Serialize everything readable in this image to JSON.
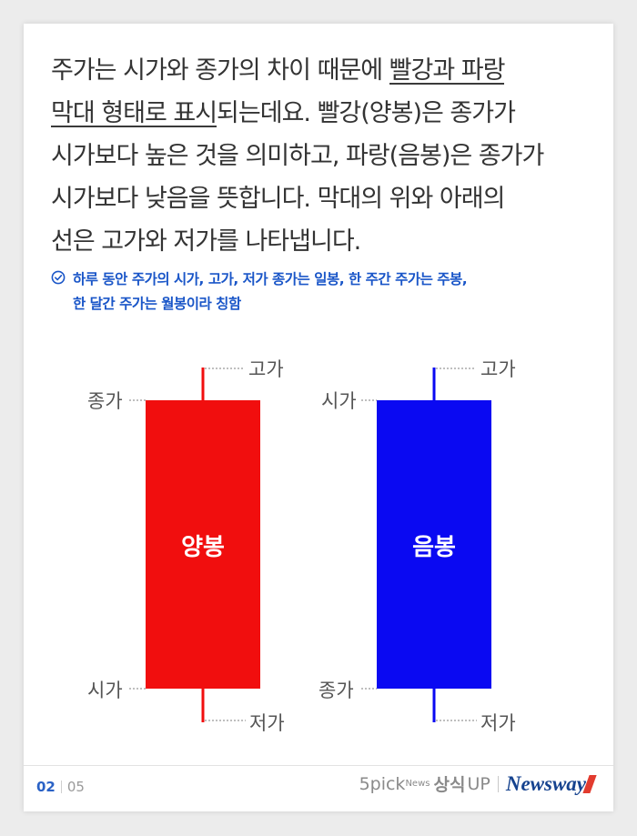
{
  "intro": {
    "line1_a": "주가는 시가와 종가의 차이 때문에 ",
    "line1_hl": "빨강과 파랑",
    "line2_hl": "막대 형태로 표시",
    "line2_b": "되는데요. 빨강(양봉)은 종가가",
    "line3": "시가보다 높은 것을 의미하고, 파랑(음봉)은 종가가",
    "line4": "시가보다 낮음을 뜻합니다. 막대의 위와 아래의",
    "line5": "선은 고가와 저가를 나타냅니다."
  },
  "note": {
    "line1": "하루 동안 주가의 시가, 고가, 저가 종가는 일봉, 한 주간 주가는 주봉,",
    "line2": "한 달간 주가는 월봉이라 칭함"
  },
  "candles": {
    "bull": {
      "body_label": "양봉",
      "top_label": "종가",
      "bottom_label": "시가",
      "high_label": "고가",
      "low_label": "저가",
      "color": "#f10e0e"
    },
    "bear": {
      "body_label": "음봉",
      "top_label": "시가",
      "bottom_label": "종가",
      "high_label": "고가",
      "low_label": "저가",
      "color": "#0a09f2"
    }
  },
  "footer": {
    "page_current": "02",
    "page_total": "05",
    "brand_5pick": "5pick",
    "brand_news": "News",
    "brand_sangsik": "상식",
    "brand_up": "UP",
    "brand_newsway": "Newsway"
  },
  "colors": {
    "text": "#333333",
    "note": "#1a56c8",
    "dotted": "#aaaaaa",
    "label": "#555555"
  }
}
